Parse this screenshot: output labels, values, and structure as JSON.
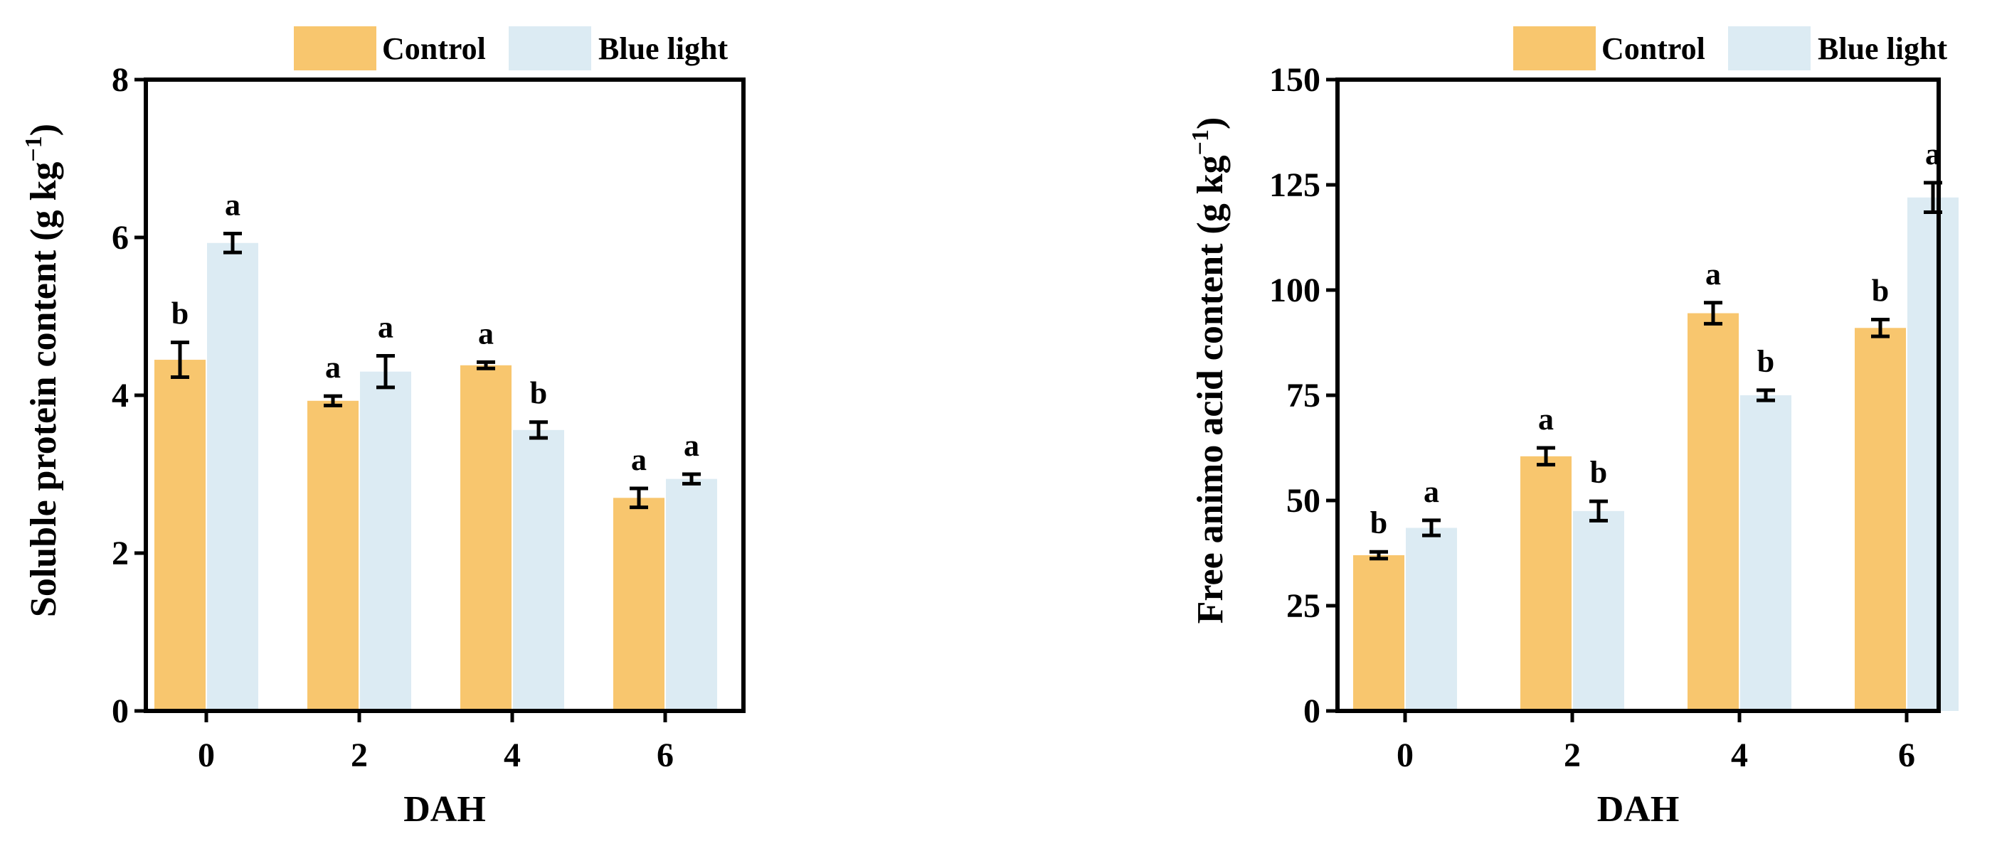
{
  "colors": {
    "control": "#F8C66E",
    "blue_light": "#DCEBF3",
    "axis": "#000000"
  },
  "legend": {
    "control": "Control",
    "blue_light": "Blue light"
  },
  "chart_data": [
    {
      "type": "bar",
      "xlabel": "DAH",
      "ylabel": "Soluble protein content (g kg",
      "ylabel_sup": "−1",
      "ylabel_close": ")",
      "categories": [
        "0",
        "2",
        "4",
        "6"
      ],
      "ylim": [
        0,
        8
      ],
      "yticks": [
        "0",
        "2",
        "4",
        "6",
        "8"
      ],
      "series": [
        {
          "name": "Control",
          "values": [
            4.45,
            3.93,
            4.38,
            2.7
          ],
          "errors": [
            0.22,
            0.06,
            0.04,
            0.12
          ],
          "letters": [
            "b",
            "a",
            "a",
            "a"
          ]
        },
        {
          "name": "Blue light",
          "values": [
            5.93,
            4.3,
            3.56,
            2.94
          ],
          "errors": [
            0.12,
            0.2,
            0.1,
            0.06
          ],
          "letters": [
            "a",
            "a",
            "b",
            "a"
          ]
        }
      ]
    },
    {
      "type": "bar",
      "xlabel": "DAH",
      "ylabel": "Free animo acid content (g kg",
      "ylabel_sup": "−1",
      "ylabel_close": ")",
      "categories": [
        "0",
        "2",
        "4",
        "6"
      ],
      "ylim": [
        0,
        150
      ],
      "yticks": [
        "0",
        "25",
        "50",
        "75",
        "100",
        "125",
        "150"
      ],
      "series": [
        {
          "name": "Control",
          "values": [
            37,
            60.5,
            94.5,
            91
          ],
          "errors": [
            0.8,
            2,
            2.5,
            2
          ],
          "letters": [
            "b",
            "a",
            "a",
            "b"
          ]
        },
        {
          "name": "Blue light",
          "values": [
            43.5,
            47.5,
            75,
            122
          ],
          "errors": [
            1.8,
            2.3,
            1.2,
            3.5
          ],
          "letters": [
            "a",
            "b",
            "b",
            "a"
          ]
        }
      ]
    }
  ]
}
